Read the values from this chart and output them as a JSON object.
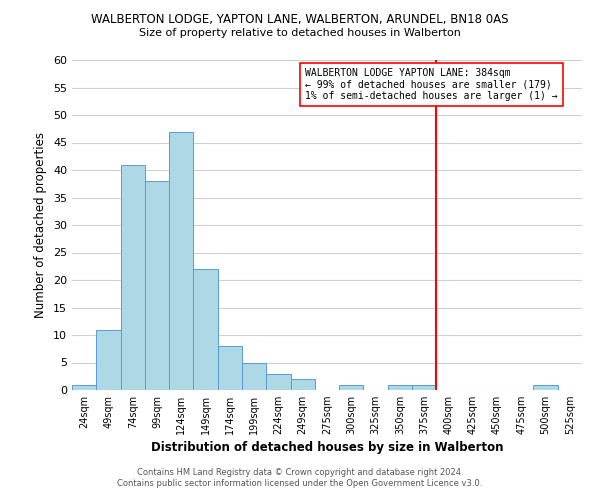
{
  "title": "WALBERTON LODGE, YAPTON LANE, WALBERTON, ARUNDEL, BN18 0AS",
  "subtitle": "Size of property relative to detached houses in Walberton",
  "xlabel": "Distribution of detached houses by size in Walberton",
  "ylabel": "Number of detached properties",
  "footer_line1": "Contains HM Land Registry data © Crown copyright and database right 2024.",
  "footer_line2": "Contains public sector information licensed under the Open Government Licence v3.0.",
  "bin_labels": [
    "24sqm",
    "49sqm",
    "74sqm",
    "99sqm",
    "124sqm",
    "149sqm",
    "174sqm",
    "199sqm",
    "224sqm",
    "249sqm",
    "275sqm",
    "300sqm",
    "325sqm",
    "350sqm",
    "375sqm",
    "400sqm",
    "425sqm",
    "450sqm",
    "475sqm",
    "500sqm",
    "525sqm"
  ],
  "bar_values": [
    1,
    11,
    41,
    38,
    47,
    22,
    8,
    5,
    3,
    2,
    0,
    1,
    0,
    1,
    1,
    0,
    0,
    0,
    0,
    1,
    0
  ],
  "bar_color": "#add8e6",
  "bar_edge_color": "#5b9bd5",
  "ylim": [
    0,
    60
  ],
  "yticks": [
    0,
    5,
    10,
    15,
    20,
    25,
    30,
    35,
    40,
    45,
    50,
    55,
    60
  ],
  "vline_color": "#ff0000",
  "annotation_title": "WALBERTON LODGE YAPTON LANE: 384sqm",
  "annotation_line1": "← 99% of detached houses are smaller (179)",
  "annotation_line2": "1% of semi-detached houses are larger (1) →",
  "background_color": "#ffffff",
  "grid_color": "#d0d0d0"
}
